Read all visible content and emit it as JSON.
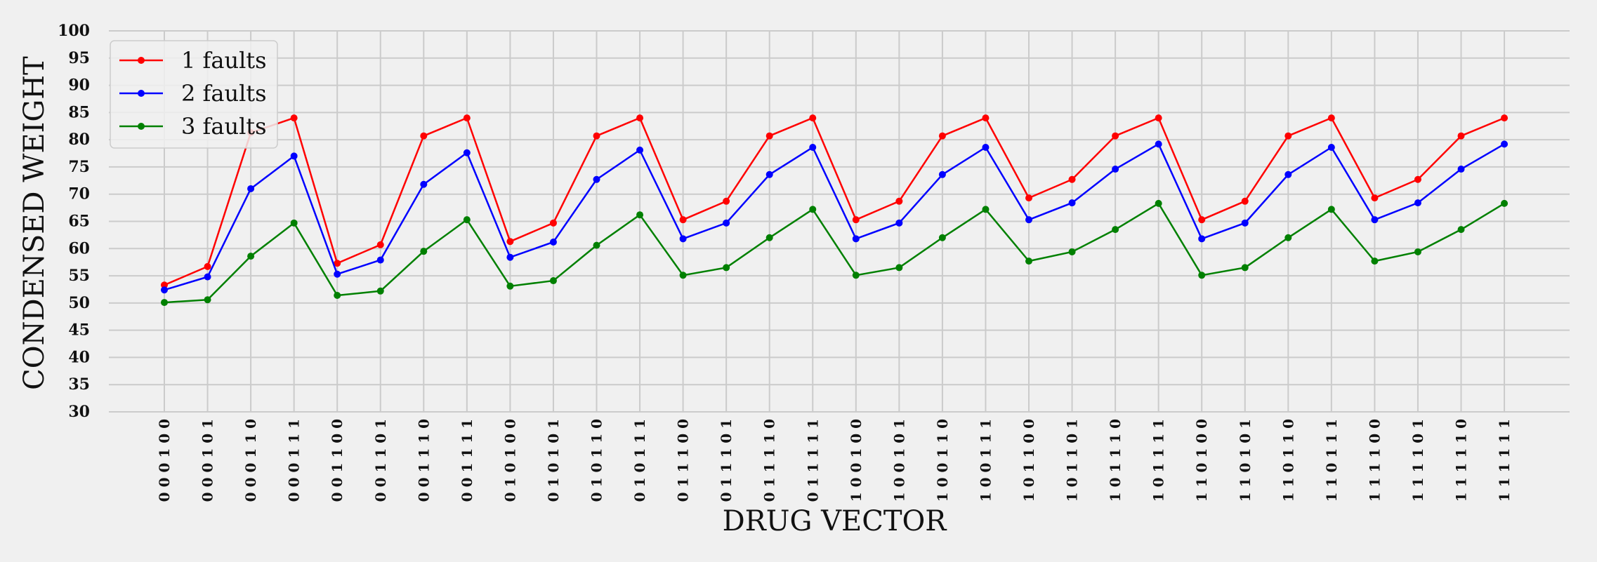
{
  "chart_data": {
    "type": "line",
    "title": "",
    "xlabel": "DRUG VECTOR",
    "ylabel": "CONDENSED WEIGHT",
    "ylim": [
      30,
      100
    ],
    "yticks": [
      30,
      35,
      40,
      45,
      50,
      55,
      60,
      65,
      70,
      75,
      80,
      85,
      90,
      95,
      100
    ],
    "grid": true,
    "legend_position": "top-left",
    "categories": [
      "0 0 0 1 0 0",
      "0 0 0 1 0 1",
      "0 0 0 1 1 0",
      "0 0 0 1 1 1",
      "0 0 1 1 0 0",
      "0 0 1 1 0 1",
      "0 0 1 1 1 0",
      "0 0 1 1 1 1",
      "0 1 0 1 0 0",
      "0 1 0 1 0 1",
      "0 1 0 1 1 0",
      "0 1 0 1 1 1",
      "0 1 1 1 0 0",
      "0 1 1 1 0 1",
      "0 1 1 1 1 0",
      "0 1 1 1 1 1",
      "1 0 0 1 0 0",
      "1 0 0 1 0 1",
      "1 0 0 1 1 0",
      "1 0 0 1 1 1",
      "1 0 1 1 0 0",
      "1 0 1 1 0 1",
      "1 0 1 1 1 0",
      "1 0 1 1 1 1",
      "1 1 0 1 0 0",
      "1 1 0 1 0 1",
      "1 1 0 1 1 0",
      "1 1 0 1 1 1",
      "1 1 1 1 0 0",
      "1 1 1 1 0 1",
      "1 1 1 1 1 0",
      "1 1 1 1 1 1"
    ],
    "series": [
      {
        "name": "1 faults",
        "color": "#ff0000",
        "values": [
          53.3,
          56.7,
          81.3,
          84.0,
          57.3,
          60.7,
          80.7,
          84.0,
          61.3,
          64.7,
          80.7,
          84.0,
          65.3,
          68.7,
          80.7,
          84.0,
          65.3,
          68.7,
          80.7,
          84.0,
          69.3,
          72.7,
          80.7,
          84.0,
          65.3,
          68.7,
          80.7,
          84.0,
          69.3,
          72.7,
          80.7,
          84.0
        ]
      },
      {
        "name": "2 faults",
        "color": "#0000ff",
        "values": [
          52.4,
          54.8,
          71.0,
          77.0,
          55.3,
          57.9,
          71.8,
          77.6,
          58.4,
          61.2,
          72.7,
          78.1,
          61.8,
          64.7,
          73.6,
          78.6,
          61.8,
          64.7,
          73.6,
          78.6,
          65.3,
          68.4,
          74.6,
          79.2,
          61.8,
          64.7,
          73.6,
          78.6,
          65.3,
          68.4,
          74.6,
          79.2
        ]
      },
      {
        "name": "3 faults",
        "color": "#008000",
        "values": [
          50.1,
          50.6,
          58.6,
          64.7,
          51.4,
          52.2,
          59.5,
          65.3,
          53.1,
          54.1,
          60.6,
          66.2,
          55.1,
          56.5,
          62.0,
          67.2,
          55.1,
          56.5,
          62.0,
          67.2,
          57.7,
          59.4,
          63.5,
          68.3,
          55.1,
          56.5,
          62.0,
          67.2,
          57.7,
          59.4,
          63.5,
          68.3
        ]
      }
    ]
  }
}
